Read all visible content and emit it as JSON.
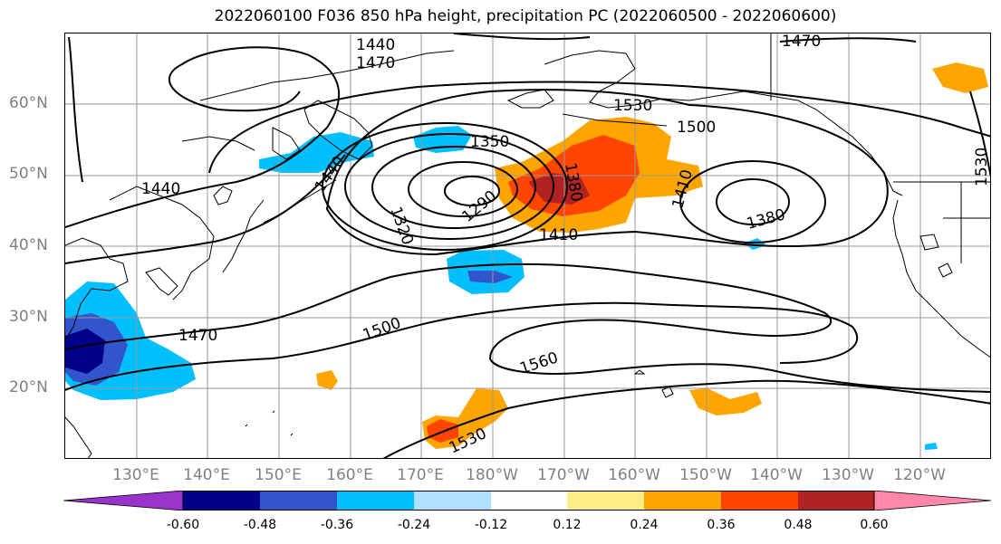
{
  "title": "2022060100 F036 850 hPa height, precipitation PC (2022060500 - 2022060600)",
  "chart_data": {
    "type": "contour-map",
    "field_contours": "850 hPa height",
    "field_shaded": "precipitation PC",
    "lat_labels": [
      "60°N",
      "50°N",
      "40°N",
      "30°N",
      "20°N"
    ],
    "lon_labels": [
      "130°E",
      "140°E",
      "150°E",
      "160°E",
      "170°E",
      "180°W",
      "170°W",
      "160°W",
      "150°W",
      "140°W",
      "130°W",
      "120°W"
    ],
    "contour_labels": [
      "1440",
      "1470",
      "1470",
      "1530",
      "1500",
      "1350",
      "1440",
      "1320",
      "1290",
      "1380",
      "1410",
      "1380",
      "1410",
      "1440",
      "1470",
      "1500",
      "1560",
      "1530",
      "1530"
    ],
    "colorbar": {
      "ticks": [
        "-0.60",
        "-0.48",
        "-0.36",
        "-0.24",
        "-0.12",
        "0.12",
        "0.24",
        "0.36",
        "0.48",
        "0.60"
      ],
      "colors": [
        "#9933cc",
        "#00008b",
        "#3355cc",
        "#00bfff",
        "#b0e0ff",
        "#ffffff",
        "#ffee88",
        "#ffa500",
        "#ff4500",
        "#b22222",
        "#ff88aa"
      ]
    },
    "grid": true
  }
}
